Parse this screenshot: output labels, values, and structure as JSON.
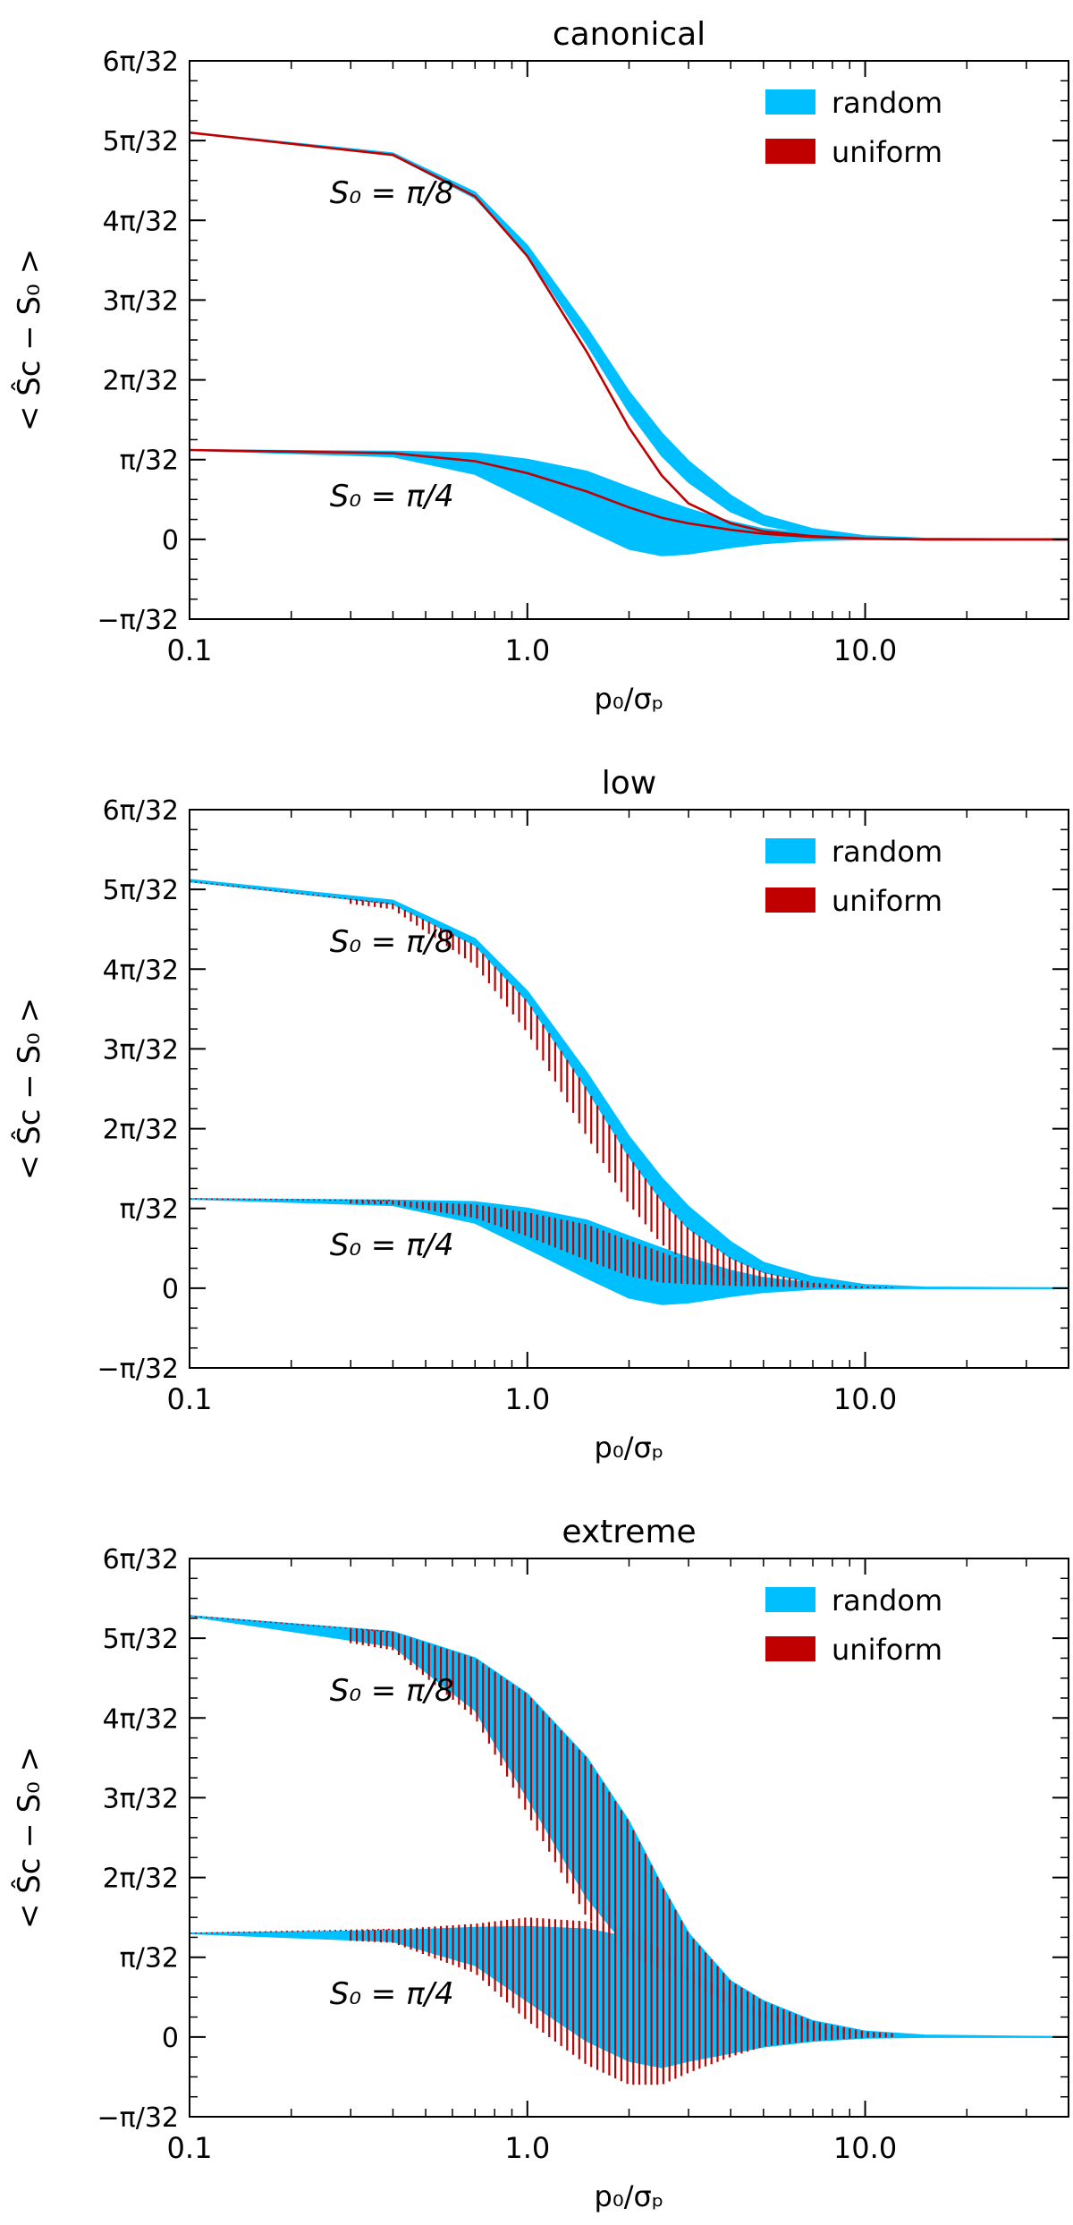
{
  "figure": {
    "colors": {
      "random": "#00bfff",
      "uniform": "#c00000",
      "axes": "#000000"
    },
    "y_unit_label": "π/32"
  },
  "chart_data": [
    {
      "type": "area",
      "title": "canonical",
      "xlabel": "p₀/σₚ",
      "ylabel": "< Ŝc − S₀ >",
      "xscale": "log",
      "xlim": [
        0.1,
        40
      ],
      "ylim": [
        -1,
        6
      ],
      "ytick_units": "pi/32",
      "xticks": [
        {
          "v": 0.1,
          "label": "0.1"
        },
        {
          "v": 1,
          "label": "1.0"
        },
        {
          "v": 10,
          "label": "10.0"
        }
      ],
      "yticks": [
        {
          "v": -1,
          "label": "−π/32"
        },
        {
          "v": 0,
          "label": "0"
        },
        {
          "v": 1,
          "label": "π/32"
        },
        {
          "v": 2,
          "label": "2π/32"
        },
        {
          "v": 3,
          "label": "3π/32"
        },
        {
          "v": 4,
          "label": "4π/32"
        },
        {
          "v": 5,
          "label": "5π/32"
        },
        {
          "v": 6,
          "label": "6π/32"
        }
      ],
      "legend": {
        "placement": "top-right",
        "entries": [
          {
            "name": "random",
            "color": "#00bfff"
          },
          {
            "name": "uniform",
            "color": "#c00000"
          }
        ]
      },
      "annotations": [
        {
          "text": "S₀ = π/8",
          "x": 0.26,
          "y": 4.35
        },
        {
          "text": "S₀ = π/4",
          "x": 0.26,
          "y": 0.55
        }
      ],
      "uniform_style": "line",
      "series": [
        {
          "name": "S0 = pi/8",
          "x": [
            0.1,
            0.4,
            0.7,
            1.0,
            1.5,
            2.0,
            2.5,
            3.0,
            4.0,
            5.0,
            7.0,
            10.0,
            15.0,
            40.0
          ],
          "uniform": [
            5.1,
            4.82,
            4.3,
            3.55,
            2.35,
            1.4,
            0.8,
            0.45,
            0.2,
            0.1,
            0.04,
            0.01,
            0.0,
            0.0
          ],
          "random_lo": [
            5.1,
            4.82,
            4.28,
            3.58,
            2.45,
            1.6,
            1.05,
            0.72,
            0.35,
            0.18,
            0.06,
            0.02,
            0.0,
            0.0
          ],
          "random_hi": [
            5.1,
            4.84,
            4.35,
            3.68,
            2.65,
            1.85,
            1.33,
            0.98,
            0.55,
            0.3,
            0.13,
            0.04,
            0.01,
            0.0
          ]
        },
        {
          "name": "S0 = pi/4",
          "x": [
            0.1,
            0.4,
            0.7,
            1.0,
            1.5,
            2.0,
            2.5,
            3.0,
            4.0,
            5.0,
            7.0,
            10.0,
            15.0,
            40.0
          ],
          "uniform": [
            1.12,
            1.08,
            0.98,
            0.83,
            0.6,
            0.4,
            0.27,
            0.2,
            0.12,
            0.07,
            0.03,
            0.01,
            0.0,
            0.0
          ],
          "random_lo": [
            1.12,
            1.04,
            0.82,
            0.5,
            0.13,
            -0.12,
            -0.2,
            -0.18,
            -0.1,
            -0.05,
            -0.01,
            0.0,
            0.0,
            0.0
          ],
          "random_hi": [
            1.12,
            1.1,
            1.08,
            1.0,
            0.85,
            0.65,
            0.5,
            0.38,
            0.22,
            0.13,
            0.06,
            0.02,
            0.0,
            0.0
          ]
        }
      ]
    },
    {
      "type": "area",
      "title": "low",
      "xlabel": "p₀/σₚ",
      "ylabel": "< Ŝc − S₀ >",
      "xscale": "log",
      "xlim": [
        0.1,
        40
      ],
      "ylim": [
        -1,
        6
      ],
      "ytick_units": "pi/32",
      "xticks": [
        {
          "v": 0.1,
          "label": "0.1"
        },
        {
          "v": 1,
          "label": "1.0"
        },
        {
          "v": 10,
          "label": "10.0"
        }
      ],
      "yticks": [
        {
          "v": -1,
          "label": "−π/32"
        },
        {
          "v": 0,
          "label": "0"
        },
        {
          "v": 1,
          "label": "π/32"
        },
        {
          "v": 2,
          "label": "2π/32"
        },
        {
          "v": 3,
          "label": "3π/32"
        },
        {
          "v": 4,
          "label": "4π/32"
        },
        {
          "v": 5,
          "label": "5π/32"
        },
        {
          "v": 6,
          "label": "6π/32"
        }
      ],
      "legend": {
        "placement": "top-right",
        "entries": [
          {
            "name": "random",
            "color": "#00bfff"
          },
          {
            "name": "uniform",
            "color": "#c00000"
          }
        ]
      },
      "annotations": [
        {
          "text": "S₀ = π/8",
          "x": 0.26,
          "y": 4.35
        },
        {
          "text": "S₀ = π/4",
          "x": 0.26,
          "y": 0.55
        }
      ],
      "uniform_style": "bars",
      "series": [
        {
          "name": "S0 = pi/8",
          "x": [
            0.1,
            0.4,
            0.7,
            1.0,
            1.5,
            2.0,
            2.5,
            3.0,
            4.0,
            5.0,
            7.0,
            10.0,
            15.0,
            40.0
          ],
          "random_lo": [
            5.1,
            4.82,
            4.3,
            3.6,
            2.5,
            1.65,
            1.1,
            0.75,
            0.38,
            0.2,
            0.07,
            0.02,
            0.0,
            0.0
          ],
          "random_hi": [
            5.12,
            4.86,
            4.38,
            3.72,
            2.7,
            1.9,
            1.38,
            1.02,
            0.58,
            0.32,
            0.14,
            0.04,
            0.01,
            0.0
          ],
          "uniform_lo": [
            5.08,
            4.75,
            4.05,
            3.2,
            1.9,
            1.05,
            0.55,
            0.3,
            0.1,
            0.03,
            0.01,
            0.0,
            0.0,
            0.0
          ],
          "uniform_hi": [
            5.1,
            4.82,
            4.3,
            3.6,
            2.5,
            1.65,
            1.1,
            0.75,
            0.38,
            0.2,
            0.07,
            0.02,
            0.0,
            0.0
          ]
        },
        {
          "name": "S0 = pi/4",
          "x": [
            0.1,
            0.4,
            0.7,
            1.0,
            1.5,
            2.0,
            2.5,
            3.0,
            4.0,
            5.0,
            7.0,
            10.0,
            15.0,
            40.0
          ],
          "random_lo": [
            1.12,
            1.04,
            0.82,
            0.5,
            0.13,
            -0.12,
            -0.2,
            -0.18,
            -0.1,
            -0.05,
            -0.01,
            0.0,
            0.0,
            0.0
          ],
          "random_hi": [
            1.12,
            1.1,
            1.08,
            1.0,
            0.85,
            0.65,
            0.5,
            0.38,
            0.22,
            0.13,
            0.06,
            0.02,
            0.0,
            0.0
          ],
          "uniform_lo": [
            1.1,
            1.05,
            0.88,
            0.65,
            0.35,
            0.15,
            0.07,
            0.05,
            0.03,
            0.02,
            0.01,
            0.0,
            0.0,
            0.0
          ],
          "uniform_hi": [
            1.12,
            1.1,
            1.05,
            0.95,
            0.8,
            0.6,
            0.45,
            0.33,
            0.2,
            0.12,
            0.05,
            0.02,
            0.0,
            0.0
          ]
        }
      ]
    },
    {
      "type": "area",
      "title": "extreme",
      "xlabel": "p₀/σₚ",
      "ylabel": "< Ŝc − S₀ >",
      "xscale": "log",
      "xlim": [
        0.1,
        40
      ],
      "ylim": [
        -1,
        6
      ],
      "ytick_units": "pi/32",
      "xticks": [
        {
          "v": 0.1,
          "label": "0.1"
        },
        {
          "v": 1,
          "label": "1.0"
        },
        {
          "v": 10,
          "label": "10.0"
        }
      ],
      "yticks": [
        {
          "v": -1,
          "label": "−π/32"
        },
        {
          "v": 0,
          "label": "0"
        },
        {
          "v": 1,
          "label": "π/32"
        },
        {
          "v": 2,
          "label": "2π/32"
        },
        {
          "v": 3,
          "label": "3π/32"
        },
        {
          "v": 4,
          "label": "4π/32"
        },
        {
          "v": 5,
          "label": "5π/32"
        },
        {
          "v": 6,
          "label": "6π/32"
        }
      ],
      "legend": {
        "placement": "top-right",
        "entries": [
          {
            "name": "random",
            "color": "#00bfff"
          },
          {
            "name": "uniform",
            "color": "#c00000"
          }
        ]
      },
      "annotations": [
        {
          "text": "S₀ = π/8",
          "x": 0.26,
          "y": 4.35
        },
        {
          "text": "S₀ = π/4",
          "x": 0.26,
          "y": 0.55
        }
      ],
      "uniform_style": "bars",
      "series": [
        {
          "name": "S0 = pi/8",
          "x": [
            0.1,
            0.4,
            0.7,
            1.0,
            1.5,
            2.0,
            2.5,
            3.0,
            4.0,
            5.0,
            7.0,
            10.0,
            15.0,
            40.0
          ],
          "random_lo": [
            5.28,
            4.9,
            4.1,
            3.0,
            1.75,
            1.1,
            0.9,
            0.72,
            0.4,
            0.25,
            0.1,
            0.03,
            0.01,
            0.0
          ],
          "random_hi": [
            5.28,
            5.08,
            4.75,
            4.3,
            3.5,
            2.7,
            1.9,
            1.3,
            0.7,
            0.45,
            0.2,
            0.07,
            0.02,
            0.0
          ],
          "uniform_lo": [
            5.28,
            4.85,
            4.0,
            2.8,
            1.5,
            1.0,
            0.85,
            0.7,
            0.38,
            0.23,
            0.09,
            0.03,
            0.01,
            0.0
          ],
          "uniform_hi": [
            5.28,
            5.08,
            4.75,
            4.3,
            3.5,
            2.7,
            1.9,
            1.3,
            0.7,
            0.45,
            0.2,
            0.07,
            0.02,
            0.0
          ]
        },
        {
          "name": "S0 = pi/4",
          "x": [
            0.1,
            0.4,
            0.7,
            1.0,
            1.5,
            2.0,
            2.5,
            3.0,
            4.0,
            5.0,
            7.0,
            10.0,
            15.0,
            40.0
          ],
          "random_lo": [
            1.3,
            1.2,
            0.9,
            0.45,
            -0.05,
            -0.3,
            -0.38,
            -0.3,
            -0.2,
            -0.12,
            -0.05,
            -0.01,
            0.0,
            0.0
          ],
          "random_hi": [
            1.3,
            1.33,
            1.37,
            1.38,
            1.35,
            1.25,
            0.95,
            0.75,
            0.5,
            0.3,
            0.15,
            0.05,
            0.01,
            0.0
          ],
          "uniform_lo": [
            1.3,
            1.18,
            0.8,
            0.2,
            -0.35,
            -0.6,
            -0.6,
            -0.45,
            -0.25,
            -0.12,
            -0.05,
            -0.01,
            0.0,
            0.0
          ],
          "uniform_hi": [
            1.3,
            1.35,
            1.42,
            1.5,
            1.45,
            1.35,
            1.1,
            0.85,
            0.55,
            0.32,
            0.16,
            0.05,
            0.01,
            0.0
          ]
        }
      ]
    }
  ]
}
